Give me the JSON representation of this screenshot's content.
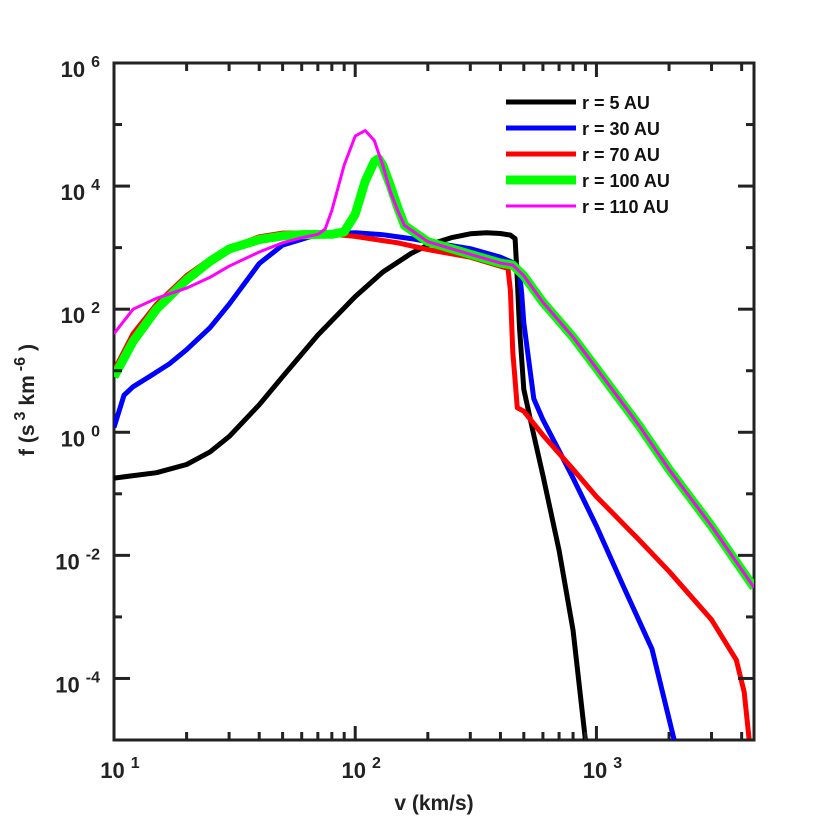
{
  "chart_data": {
    "type": "line",
    "title": "",
    "xscale": "log",
    "yscale": "log",
    "xlim": [
      10,
      4500
    ],
    "ylim_log10": [
      -5,
      6
    ],
    "xlabel": "v (km/s)",
    "ylabel": {
      "parts": [
        "f (s",
        "3",
        "km",
        "-6",
        ")"
      ]
    },
    "x_ticks": [
      {
        "value": 10,
        "base": "10",
        "exp": "1"
      },
      {
        "value": 100,
        "base": "10",
        "exp": "2"
      },
      {
        "value": 1000,
        "base": "10",
        "exp": "3"
      }
    ],
    "y_ticks": [
      {
        "value": 0.0001,
        "base": "10",
        "exp": "-4"
      },
      {
        "value": 0.01,
        "base": "10",
        "exp": "-2"
      },
      {
        "value": 1,
        "base": "10",
        "exp": "0"
      },
      {
        "value": 100,
        "base": "10",
        "exp": "2"
      },
      {
        "value": 10000,
        "base": "10",
        "exp": "4"
      },
      {
        "value": 1000000,
        "base": "10",
        "exp": "6"
      }
    ],
    "legend_position": "top-right",
    "series": [
      {
        "name": "r = 5 AU",
        "color": "#000000",
        "width": 5,
        "x": [
          10,
          15,
          20,
          25,
          30,
          40,
          50,
          70,
          100,
          130,
          170,
          200,
          250,
          300,
          350,
          400,
          440,
          460,
          470,
          480,
          500,
          550,
          600,
          700,
          800,
          900
        ],
        "y": [
          0.18,
          0.22,
          0.3,
          0.48,
          0.85,
          2.8,
          8,
          38,
          160,
          400,
          800,
          1100,
          1450,
          1680,
          1750,
          1700,
          1600,
          1400,
          300,
          50,
          5.0,
          0.9,
          0.2,
          0.012,
          0.0006,
          1e-05
        ]
      },
      {
        "name": "r = 30 AU",
        "color": "#0000ff",
        "width": 5,
        "x": [
          10,
          11,
          12,
          14,
          17,
          20,
          25,
          30,
          40,
          50,
          70,
          100,
          130,
          170,
          200,
          300,
          400,
          460,
          480,
          490,
          500,
          550,
          600,
          700,
          800,
          1000,
          1300,
          1700,
          2100
        ],
        "y": [
          1.2,
          4,
          5.5,
          8,
          13,
          22,
          50,
          120,
          550,
          1100,
          1650,
          1750,
          1620,
          1400,
          1250,
          960,
          700,
          550,
          400,
          180,
          60,
          3.5,
          1.6,
          0.5,
          0.18,
          0.03,
          0.003,
          0.0003,
          1e-05
        ]
      },
      {
        "name": "r = 70 AU",
        "color": "#ff0000",
        "width": 5,
        "x": [
          10,
          12,
          15,
          20,
          25,
          30,
          40,
          50,
          70,
          100,
          150,
          200,
          300,
          400,
          430,
          440,
          450,
          460,
          470,
          500,
          600,
          800,
          1000,
          1500,
          2000,
          3000,
          3800,
          4100,
          4300
        ],
        "y": [
          10,
          40,
          120,
          350,
          650,
          980,
          1500,
          1720,
          1750,
          1520,
          1200,
          930,
          700,
          500,
          460,
          200,
          20,
          7,
          2.5,
          2.2,
          0.9,
          0.25,
          0.09,
          0.018,
          0.0055,
          0.0009,
          0.0002,
          6e-05,
          1e-05
        ]
      },
      {
        "name": "r = 100 AU",
        "color": "#00ff00",
        "width": 9,
        "x": [
          10,
          12,
          15,
          20,
          25,
          30,
          40,
          50,
          60,
          70,
          80,
          90,
          100,
          110,
          120,
          125,
          130,
          140,
          150,
          160,
          200,
          300,
          400,
          450,
          500,
          600,
          800,
          1000,
          1500,
          2000,
          3000,
          4500
        ],
        "y": [
          8,
          30,
          100,
          300,
          600,
          950,
          1350,
          1550,
          1620,
          1640,
          1650,
          1800,
          3500,
          12000,
          25000,
          28000,
          22000,
          10000,
          4500,
          2300,
          1250,
          780,
          560,
          520,
          350,
          130,
          35,
          11,
          1.3,
          0.25,
          0.03,
          0.003
        ]
      },
      {
        "name": "r = 110 AU",
        "color": "#ff00ff",
        "width": 3,
        "x": [
          10,
          12,
          15,
          20,
          25,
          30,
          40,
          50,
          60,
          70,
          75,
          80,
          90,
          100,
          110,
          120,
          130,
          140,
          150,
          160,
          200,
          300,
          400,
          450,
          500,
          600,
          800,
          1000,
          1500,
          2000,
          3000,
          4500
        ],
        "y": [
          40,
          100,
          150,
          220,
          330,
          500,
          850,
          1200,
          1450,
          1650,
          2000,
          4000,
          22000,
          65000,
          80000,
          55000,
          22000,
          8000,
          4000,
          2300,
          1250,
          780,
          560,
          520,
          350,
          130,
          35,
          11,
          1.3,
          0.25,
          0.03,
          0.003
        ]
      }
    ]
  }
}
